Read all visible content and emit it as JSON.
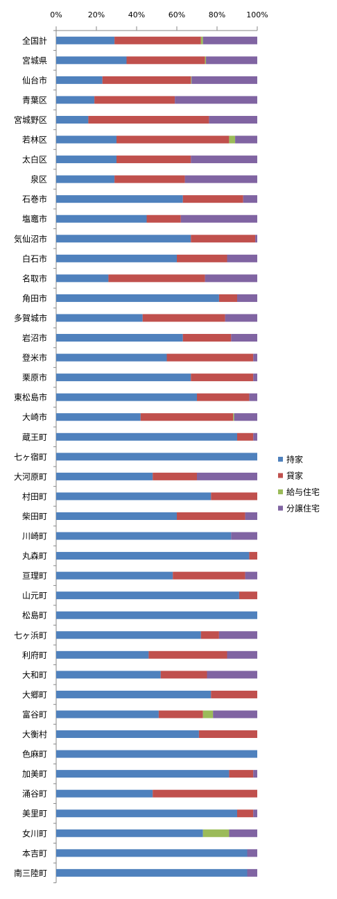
{
  "chart_data": {
    "type": "bar",
    "orientation": "horizontal",
    "stacked": "percent",
    "xlim": [
      0,
      100
    ],
    "x_ticks": [
      "0%",
      "20%",
      "40%",
      "60%",
      "80%",
      "100%"
    ],
    "grid": false,
    "legend_position": "right",
    "categories": [
      "全国計",
      "宮城県",
      "仙台市",
      "青葉区",
      "宮城野区",
      "若林区",
      "太白区",
      "泉区",
      "石巻市",
      "塩竈市",
      "気仙沼市",
      "白石市",
      "名取市",
      "角田市",
      "多賀城市",
      "岩沼市",
      "登米市",
      "栗原市",
      "東松島市",
      "大崎市",
      "蔵王町",
      "七ヶ宿町",
      "大河原町",
      "村田町",
      "柴田町",
      "川崎町",
      "丸森町",
      "亘理町",
      "山元町",
      "松島町",
      "七ヶ浜町",
      "利府町",
      "大和町",
      "大郷町",
      "富谷町",
      "大衡村",
      "色麻町",
      "加美町",
      "涌谷町",
      "美里町",
      "女川町",
      "本吉町",
      "南三陸町"
    ],
    "series": [
      {
        "name": "持家",
        "color": "#4f81bd",
        "values": [
          29,
          35,
          23,
          19,
          16,
          30,
          30,
          29,
          63,
          45,
          67,
          60,
          26,
          81,
          43,
          63,
          55,
          67,
          70,
          42,
          90,
          100,
          48,
          77,
          60,
          87,
          96,
          58,
          91,
          100,
          72,
          46,
          52,
          77,
          51,
          71,
          100,
          86,
          48,
          90,
          73,
          95,
          95
        ]
      },
      {
        "name": "貸家",
        "color": "#c0504d",
        "values": [
          43,
          39,
          44,
          40,
          60,
          56,
          37,
          35,
          30,
          17,
          32,
          25,
          48,
          9,
          41,
          24,
          43,
          31,
          26,
          46,
          8,
          0,
          22,
          23,
          34,
          0,
          4,
          36,
          9,
          0,
          9,
          39,
          23,
          23,
          22,
          29,
          0,
          12,
          52,
          8,
          0,
          0,
          0
        ]
      },
      {
        "name": "給与住宅",
        "color": "#9bbb59",
        "values": [
          1,
          0.5,
          0.3,
          0,
          0,
          3,
          0,
          0,
          0,
          0,
          0,
          0,
          0,
          0,
          0,
          0,
          0,
          0,
          0,
          0.5,
          0,
          0,
          0,
          0,
          0,
          0,
          0,
          0,
          0,
          0,
          0,
          0,
          0,
          0,
          5,
          0,
          0,
          0,
          0,
          0,
          13,
          0,
          0
        ]
      },
      {
        "name": "分譲住宅",
        "color": "#8064a2",
        "values": [
          27,
          25.5,
          32.7,
          41,
          24,
          11,
          33,
          36,
          7,
          38,
          1,
          15,
          26,
          10,
          16,
          13,
          2,
          2,
          4,
          11.5,
          2,
          0,
          30,
          0,
          6,
          13,
          0,
          6,
          0,
          0,
          19,
          15,
          25,
          0,
          22,
          0,
          0,
          2,
          0,
          2,
          14,
          5,
          5
        ]
      }
    ]
  }
}
